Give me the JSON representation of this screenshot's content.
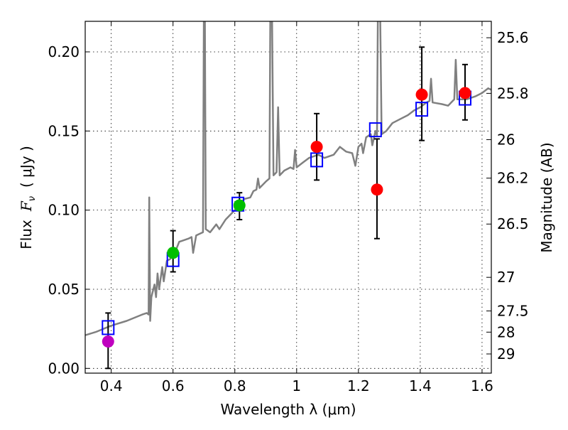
{
  "chart_data": {
    "type": "scatter",
    "xlabel": "Wavelength  λ (μm)",
    "ylabel": "Flux  F_ν  ( μJy )",
    "ylabel_parts": [
      "Flux",
      "F",
      "ν",
      "( μJy )"
    ],
    "y2label": "Magnitude (AB)",
    "xlim": [
      0.3158,
      1.63
    ],
    "ylim": [
      -0.003,
      0.2193
    ],
    "grid": true,
    "x_ticks": [
      0.4,
      0.6,
      0.8,
      1.0,
      1.2,
      1.4,
      1.6
    ],
    "x_tick_labels": [
      "0.4",
      "0.6",
      "0.8",
      "1",
      "1.2",
      "1.4",
      "1.6"
    ],
    "y_ticks": [
      0.0,
      0.05,
      0.1,
      0.15,
      0.2
    ],
    "y_tick_labels": [
      "0.00",
      "0.05",
      "0.10",
      "0.15",
      "0.20"
    ],
    "y2_ticks": [
      25.6,
      25.8,
      26,
      26.2,
      26.5,
      27,
      27.5,
      28,
      29
    ],
    "y2_tick_labels": [
      "25.6",
      "25.8",
      "26",
      "26.2",
      "26.5",
      "27",
      "27.5",
      "28",
      "29"
    ],
    "y2_zero_point": 23.9,
    "colors": {
      "spectrum": "#808080",
      "model": "#0000ff",
      "uv": "#bf00bf",
      "optical": "#00bf00",
      "nir": "#ff0000",
      "err": "#000000"
    },
    "spectrum": [
      [
        0.316,
        0.021
      ],
      [
        0.35,
        0.023
      ],
      [
        0.4,
        0.027
      ],
      [
        0.45,
        0.03
      ],
      [
        0.5,
        0.034
      ],
      [
        0.515,
        0.035
      ],
      [
        0.521,
        0.034
      ],
      [
        0.523,
        0.108
      ],
      [
        0.526,
        0.03
      ],
      [
        0.53,
        0.045
      ],
      [
        0.54,
        0.053
      ],
      [
        0.545,
        0.045
      ],
      [
        0.55,
        0.06
      ],
      [
        0.555,
        0.05
      ],
      [
        0.565,
        0.064
      ],
      [
        0.57,
        0.055
      ],
      [
        0.58,
        0.068
      ],
      [
        0.59,
        0.069
      ],
      [
        0.61,
        0.075
      ],
      [
        0.62,
        0.08
      ],
      [
        0.65,
        0.082
      ],
      [
        0.66,
        0.083
      ],
      [
        0.665,
        0.073
      ],
      [
        0.675,
        0.084
      ],
      [
        0.697,
        0.086
      ],
      [
        0.7,
        0.23
      ],
      [
        0.703,
        0.23
      ],
      [
        0.706,
        0.088
      ],
      [
        0.72,
        0.086
      ],
      [
        0.74,
        0.091
      ],
      [
        0.75,
        0.088
      ],
      [
        0.77,
        0.094
      ],
      [
        0.8,
        0.1
      ],
      [
        0.83,
        0.107
      ],
      [
        0.85,
        0.108
      ],
      [
        0.86,
        0.112
      ],
      [
        0.87,
        0.113
      ],
      [
        0.875,
        0.12
      ],
      [
        0.88,
        0.114
      ],
      [
        0.9,
        0.118
      ],
      [
        0.912,
        0.12
      ],
      [
        0.915,
        0.23
      ],
      [
        0.92,
        0.23
      ],
      [
        0.925,
        0.122
      ],
      [
        0.935,
        0.124
      ],
      [
        0.94,
        0.165
      ],
      [
        0.945,
        0.122
      ],
      [
        0.96,
        0.125
      ],
      [
        0.98,
        0.127
      ],
      [
        0.99,
        0.126
      ],
      [
        0.995,
        0.138
      ],
      [
        1.0,
        0.127
      ],
      [
        1.02,
        0.13
      ],
      [
        1.04,
        0.133
      ],
      [
        1.07,
        0.135
      ],
      [
        1.09,
        0.133
      ],
      [
        1.12,
        0.135
      ],
      [
        1.14,
        0.14
      ],
      [
        1.16,
        0.137
      ],
      [
        1.18,
        0.136
      ],
      [
        1.19,
        0.128
      ],
      [
        1.2,
        0.14
      ],
      [
        1.21,
        0.142
      ],
      [
        1.215,
        0.136
      ],
      [
        1.225,
        0.146
      ],
      [
        1.24,
        0.148
      ],
      [
        1.245,
        0.141
      ],
      [
        1.255,
        0.15
      ],
      [
        1.26,
        0.147
      ],
      [
        1.263,
        0.23
      ],
      [
        1.27,
        0.23
      ],
      [
        1.275,
        0.148
      ],
      [
        1.29,
        0.15
      ],
      [
        1.31,
        0.155
      ],
      [
        1.33,
        0.157
      ],
      [
        1.36,
        0.16
      ],
      [
        1.38,
        0.163
      ],
      [
        1.4,
        0.165
      ],
      [
        1.42,
        0.168
      ],
      [
        1.43,
        0.169
      ],
      [
        1.435,
        0.183
      ],
      [
        1.44,
        0.168
      ],
      [
        1.47,
        0.167
      ],
      [
        1.49,
        0.166
      ],
      [
        1.51,
        0.17
      ],
      [
        1.515,
        0.195
      ],
      [
        1.52,
        0.17
      ],
      [
        1.55,
        0.17
      ],
      [
        1.58,
        0.172
      ],
      [
        1.6,
        0.174
      ],
      [
        1.62,
        0.177
      ],
      [
        1.63,
        0.176
      ]
    ],
    "model_points": [
      [
        0.39,
        0.026
      ],
      [
        0.6,
        0.069
      ],
      [
        0.81,
        0.104
      ],
      [
        1.065,
        0.132
      ],
      [
        1.255,
        0.151
      ],
      [
        1.405,
        0.164
      ],
      [
        1.545,
        0.171
      ]
    ],
    "observed_points": [
      {
        "x": 0.39,
        "y": 0.017,
        "lo": 0.0,
        "hi": 0.035,
        "group": "uv"
      },
      {
        "x": 0.6,
        "y": 0.073,
        "lo": 0.061,
        "hi": 0.087,
        "group": "optical"
      },
      {
        "x": 0.815,
        "y": 0.103,
        "lo": 0.094,
        "hi": 0.111,
        "group": "optical"
      },
      {
        "x": 1.065,
        "y": 0.14,
        "lo": 0.119,
        "hi": 0.161,
        "group": "nir"
      },
      {
        "x": 1.26,
        "y": 0.113,
        "lo": 0.082,
        "hi": 0.145,
        "group": "nir"
      },
      {
        "x": 1.405,
        "y": 0.173,
        "lo": 0.144,
        "hi": 0.203,
        "group": "nir"
      },
      {
        "x": 1.545,
        "y": 0.174,
        "lo": 0.157,
        "hi": 0.192,
        "group": "nir"
      }
    ]
  }
}
